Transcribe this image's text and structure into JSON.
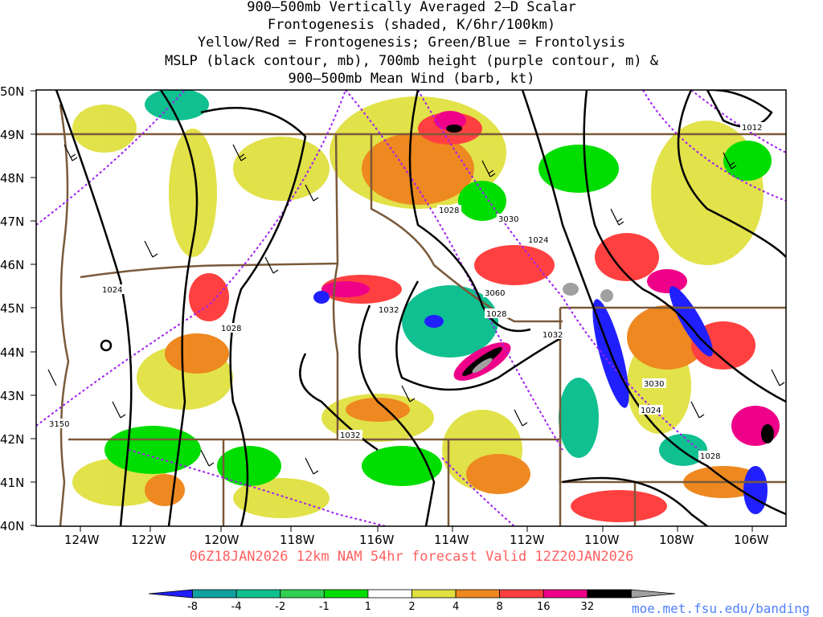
{
  "title": {
    "line1": "900–500mb Vertically Averaged 2–D Scalar",
    "line2": "Frontogenesis (shaded, K/6hr/100km)",
    "line3": "Yellow/Red = Frontogenesis;  Green/Blue = Frontolysis",
    "line4": "MSLP (black contour, mb), 700mb height (purple contour, m) &",
    "line5": "900–500mb Mean Wind (barb, kt)"
  },
  "footer": "06Z18JAN2026 12km NAM 54hr forecast Valid 12Z20JAN2026",
  "credit": "moe.met.fsu.edu/banding",
  "axes": {
    "lat_labels": [
      "50N",
      "49N",
      "48N",
      "47N",
      "46N",
      "45N",
      "44N",
      "43N",
      "42N",
      "41N",
      "40N"
    ],
    "lon_labels": [
      "124W",
      "122W",
      "120W",
      "118W",
      "116W",
      "114W",
      "112W",
      "110W",
      "108W",
      "106W"
    ]
  },
  "contour_labels": [
    {
      "text": "1012"
    },
    {
      "text": "1028"
    },
    {
      "text": "3030"
    },
    {
      "text": "1024"
    },
    {
      "text": "1024"
    },
    {
      "text": "3060"
    },
    {
      "text": "1032"
    },
    {
      "text": "1028"
    },
    {
      "text": "1028"
    },
    {
      "text": "1032"
    },
    {
      "text": "3030"
    },
    {
      "text": "1024"
    },
    {
      "text": "3150"
    },
    {
      "text": "1032"
    },
    {
      "text": "1028"
    }
  ],
  "colorbar": {
    "labels": [
      "-8",
      "-4",
      "-2",
      "-1",
      "1",
      "2",
      "4",
      "8",
      "16",
      "32"
    ],
    "colors": [
      "#2020ff",
      "#10a0a0",
      "#10c090",
      "#30d050",
      "#00dd00",
      "#ffffff",
      "#e0e040",
      "#ee8820",
      "#ff4040",
      "#ee0088",
      "#000000",
      "#a0a0a0"
    ]
  },
  "colors": {
    "mslp": "#000000",
    "height": "#a020f0",
    "borders": "#7a5a3a",
    "footer": "#ff6060",
    "credit": "#5080ff"
  }
}
